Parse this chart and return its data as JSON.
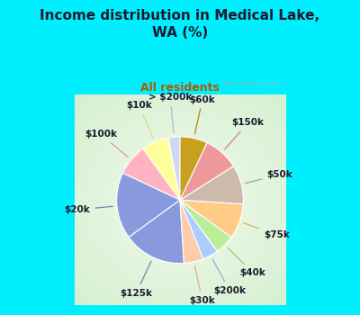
{
  "title": "Income distribution in Medical Lake,\nWA (%)",
  "subtitle": "All residents",
  "title_color": "#1a1a2e",
  "subtitle_color": "#b05a00",
  "background_color": "#00efff",
  "watermark": "City-Data.com",
  "labels": [
    "> $200k",
    "$10k",
    "$100k",
    "$20k",
    "$125k",
    "$30k",
    "$200k",
    "$40k",
    "$75k",
    "$50k",
    "$150k",
    "$60k"
  ],
  "values": [
    3,
    7,
    8,
    17,
    16,
    5,
    4,
    5,
    9,
    10,
    9,
    7
  ],
  "colors": [
    "#d0d8f0",
    "#ffff99",
    "#ffb3c0",
    "#8899dd",
    "#8899dd",
    "#ffccaa",
    "#aaccff",
    "#bbee99",
    "#ffcc88",
    "#ccbbaa",
    "#ee9999",
    "#c8a020"
  ],
  "startangle": 90,
  "label_fontsize": 7.5,
  "title_fontsize": 11,
  "subtitle_fontsize": 9
}
